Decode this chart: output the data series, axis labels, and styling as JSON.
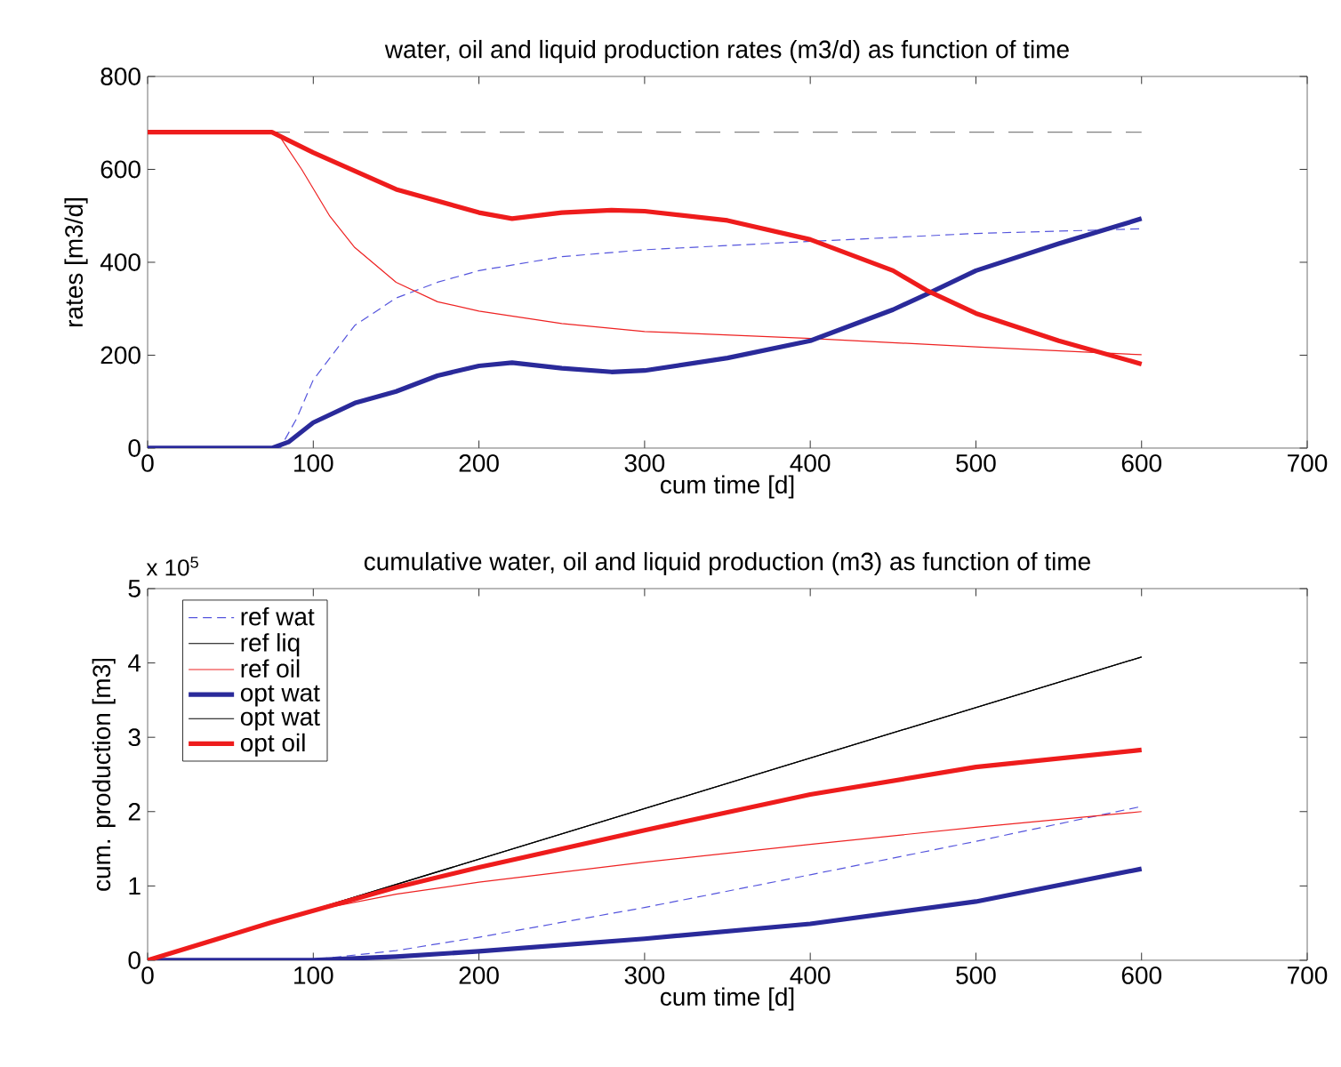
{
  "chart_data": [
    {
      "type": "line",
      "title": "water, oil and liquid production rates (m3/d) as function of time",
      "xlabel": "cum time [d]",
      "ylabel": "rates [m3/d]",
      "xlim": [
        0,
        700
      ],
      "xticks": [
        0,
        100,
        200,
        300,
        400,
        500,
        600,
        700
      ],
      "ylim": [
        0,
        800
      ],
      "yticks": [
        0,
        200,
        400,
        600,
        800
      ],
      "legend": false,
      "series": [
        {
          "color": "#808080",
          "line_style": "dashed",
          "x": [
            0,
            600
          ],
          "values": [
            680,
            680
          ]
        },
        {
          "color": "#5555dd",
          "line_style": "dashed",
          "x": [
            0,
            80,
            90,
            100,
            125,
            150,
            175,
            200,
            250,
            300,
            400,
            500,
            600
          ],
          "values": [
            0,
            0,
            64,
            147,
            264,
            323,
            357,
            382,
            412,
            427,
            445,
            462,
            472
          ]
        },
        {
          "color": "#ee2222",
          "line_style": "solid",
          "x": [
            0,
            78,
            93,
            110,
            125,
            150,
            175,
            200,
            250,
            300,
            400,
            500,
            600
          ],
          "values": [
            680,
            680,
            600,
            499,
            432,
            357,
            315,
            295,
            268,
            251,
            236,
            218,
            201
          ]
        },
        {
          "color": "#2a2a9a",
          "line_style": "solid",
          "x": [
            0,
            75,
            85,
            100,
            125,
            150,
            175,
            200,
            220,
            250,
            280,
            300,
            350,
            400,
            450,
            470,
            500,
            550,
            600
          ],
          "values": [
            0,
            0,
            13,
            55,
            97,
            122,
            156,
            177,
            184,
            172,
            164,
            167,
            194,
            231,
            298,
            331,
            382,
            440,
            494
          ]
        },
        {
          "color": "#ee1c1c",
          "line_style": "solid",
          "x": [
            0,
            75,
            100,
            150,
            200,
            220,
            250,
            280,
            300,
            350,
            400,
            450,
            470,
            500,
            550,
            600
          ],
          "values": [
            680,
            680,
            636,
            557,
            507,
            494,
            507,
            512,
            510,
            490,
            449,
            382,
            340,
            290,
            231,
            181
          ]
        }
      ]
    },
    {
      "type": "line",
      "title": "cumulative water, oil and liquid production (m3) as function of time",
      "xlabel": "cum time [d]",
      "ylabel": "cum. production [m3]",
      "annotations": [
        "x 10$^{5}$"
      ],
      "xlim": [
        0,
        700
      ],
      "xticks": [
        0,
        100,
        200,
        300,
        400,
        500,
        600,
        700
      ],
      "ylim": [
        0,
        5
      ],
      "yticks": [
        0,
        1,
        2,
        3,
        4,
        5
      ],
      "legend": "top left",
      "series": [
        {
          "name": "ref wat",
          "color": "#5555dd",
          "line_style": "dashed",
          "x": [
            0,
            100,
            150,
            200,
            300,
            400,
            500,
            600
          ],
          "values": [
            0,
            0.01,
            0.13,
            0.31,
            0.71,
            1.15,
            1.6,
            2.07
          ]
        },
        {
          "name": "ref liq",
          "color": "#000000",
          "line_style": "solid",
          "x": [
            0,
            600
          ],
          "values": [
            0,
            4.08
          ]
        },
        {
          "name": "ref oil",
          "color": "#ee2222",
          "line_style": "solid",
          "x": [
            0,
            78,
            100,
            150,
            200,
            300,
            400,
            500,
            600
          ],
          "values": [
            0,
            0.53,
            0.67,
            0.89,
            1.05,
            1.32,
            1.56,
            1.79,
            2.0
          ]
        },
        {
          "name": "opt wat",
          "color": "#2a2a9a",
          "line_style": "solid",
          "x": [
            0,
            100,
            150,
            200,
            300,
            400,
            500,
            600
          ],
          "values": [
            0,
            0,
            0.05,
            0.12,
            0.29,
            0.49,
            0.79,
            1.23
          ]
        },
        {
          "name": "opt wat",
          "color": "#000000",
          "line_style": "solid",
          "x": [
            0,
            600
          ],
          "values": [
            0,
            4.08
          ]
        },
        {
          "name": "opt oil",
          "color": "#ee1c1c",
          "line_style": "solid",
          "x": [
            0,
            75,
            150,
            200,
            300,
            400,
            500,
            600
          ],
          "values": [
            0,
            0.51,
            0.98,
            1.25,
            1.75,
            2.23,
            2.6,
            2.83
          ]
        }
      ]
    }
  ]
}
